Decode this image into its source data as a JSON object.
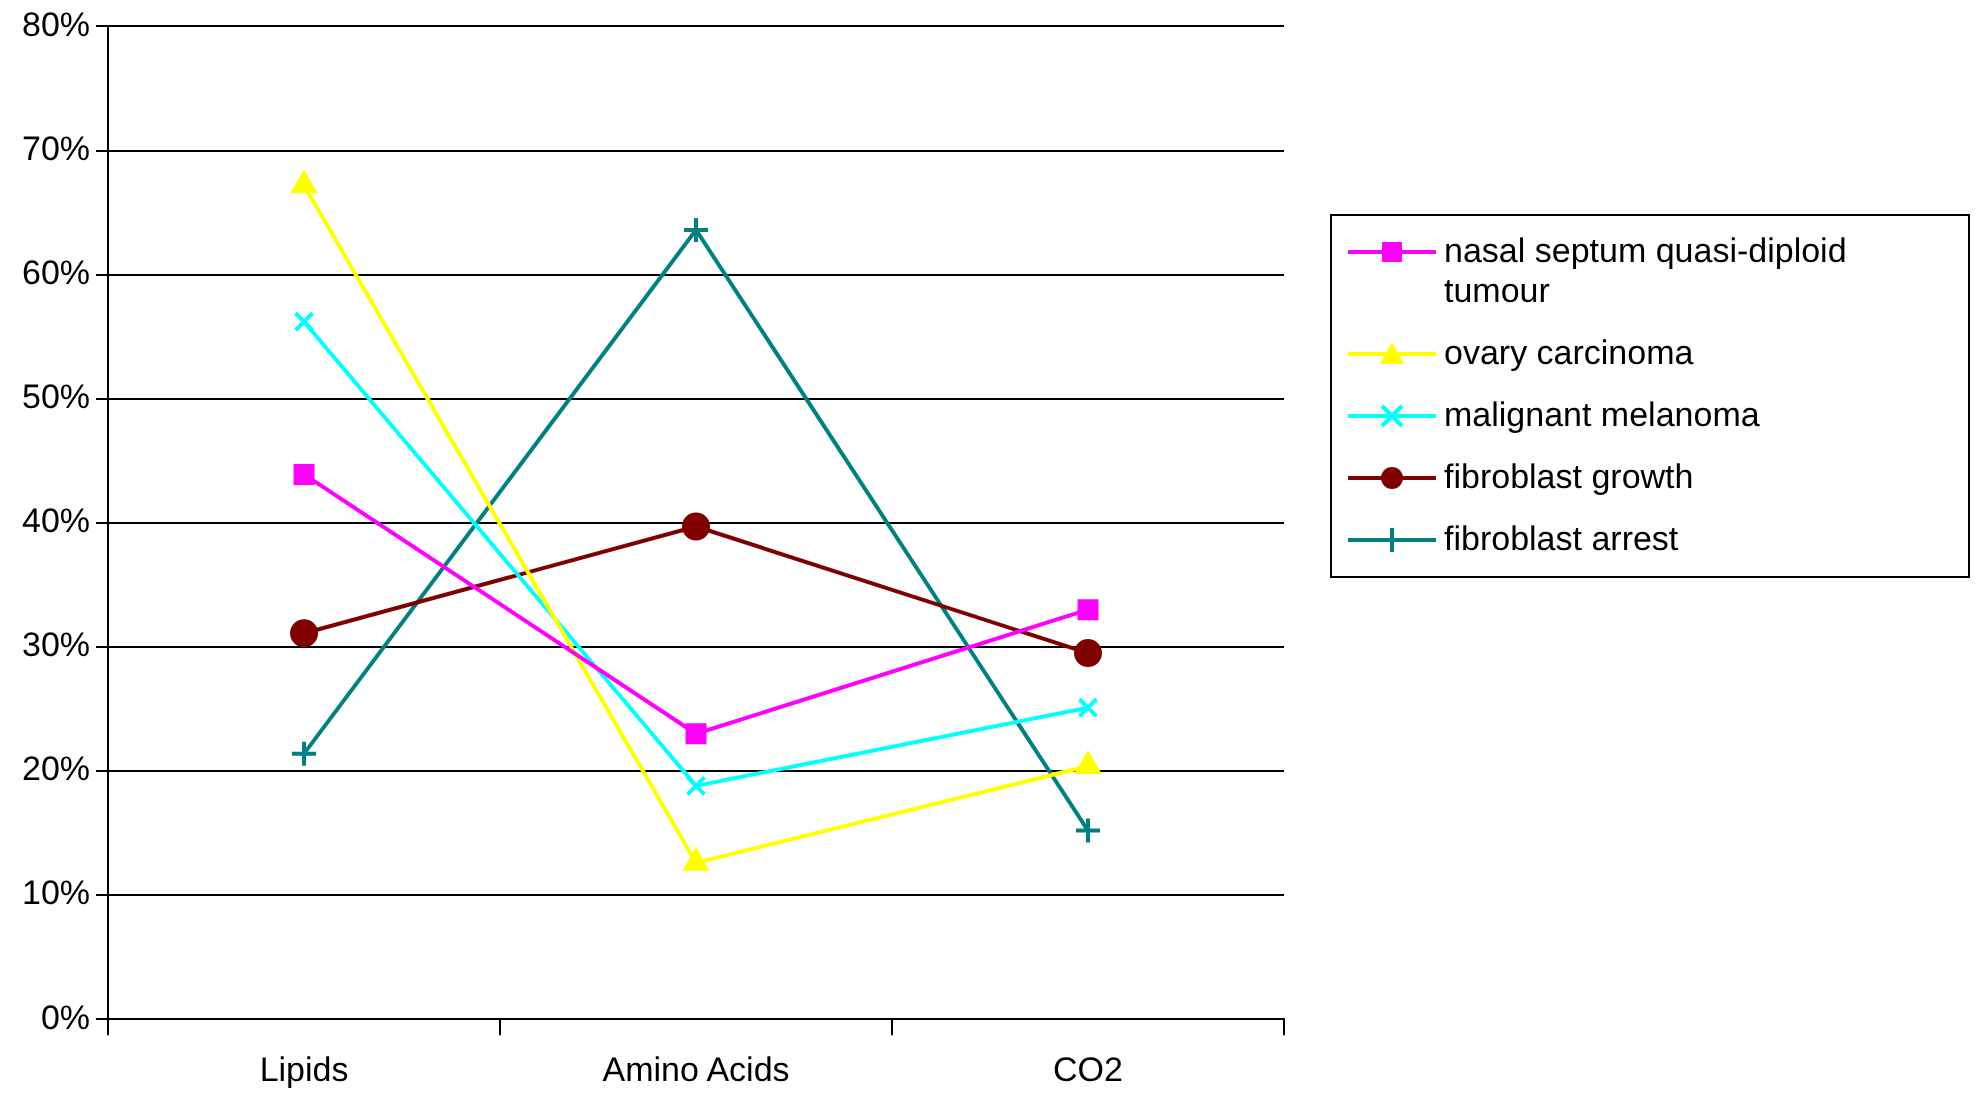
{
  "chart_data": {
    "type": "line",
    "categories": [
      "Lipids",
      "Amino Acids",
      "CO2"
    ],
    "series": [
      {
        "name": "nasal septum quasi-diploid tumour",
        "color": "#ff00ff",
        "marker": "square",
        "values": [
          43.9,
          23.0,
          33.0
        ]
      },
      {
        "name": "ovary carcinoma",
        "color": "#ffff00",
        "marker": "triangle",
        "values": [
          67.2,
          12.6,
          20.4
        ]
      },
      {
        "name": "malignant melanoma",
        "color": "#00ffff",
        "marker": "cross",
        "values": [
          56.2,
          18.8,
          25.1
        ]
      },
      {
        "name": "fibroblast growth",
        "color": "#800000",
        "marker": "circle",
        "values": [
          31.1,
          39.7,
          29.5
        ]
      },
      {
        "name": "fibroblast arrest",
        "color": "#008080",
        "marker": "plus",
        "values": [
          21.4,
          63.6,
          15.2
        ]
      }
    ],
    "ylim": [
      0,
      80
    ],
    "yticks": [
      {
        "value": 0,
        "label": "0%"
      },
      {
        "value": 10,
        "label": "10%"
      },
      {
        "value": 20,
        "label": "20%"
      },
      {
        "value": 30,
        "label": "30%"
      },
      {
        "value": 40,
        "label": "40%"
      },
      {
        "value": 50,
        "label": "50%"
      },
      {
        "value": 60,
        "label": "60%"
      },
      {
        "value": 70,
        "label": "70%"
      },
      {
        "value": 80,
        "label": "80%"
      }
    ],
    "grid": "y",
    "legend": "right",
    "line_style": "solid"
  }
}
